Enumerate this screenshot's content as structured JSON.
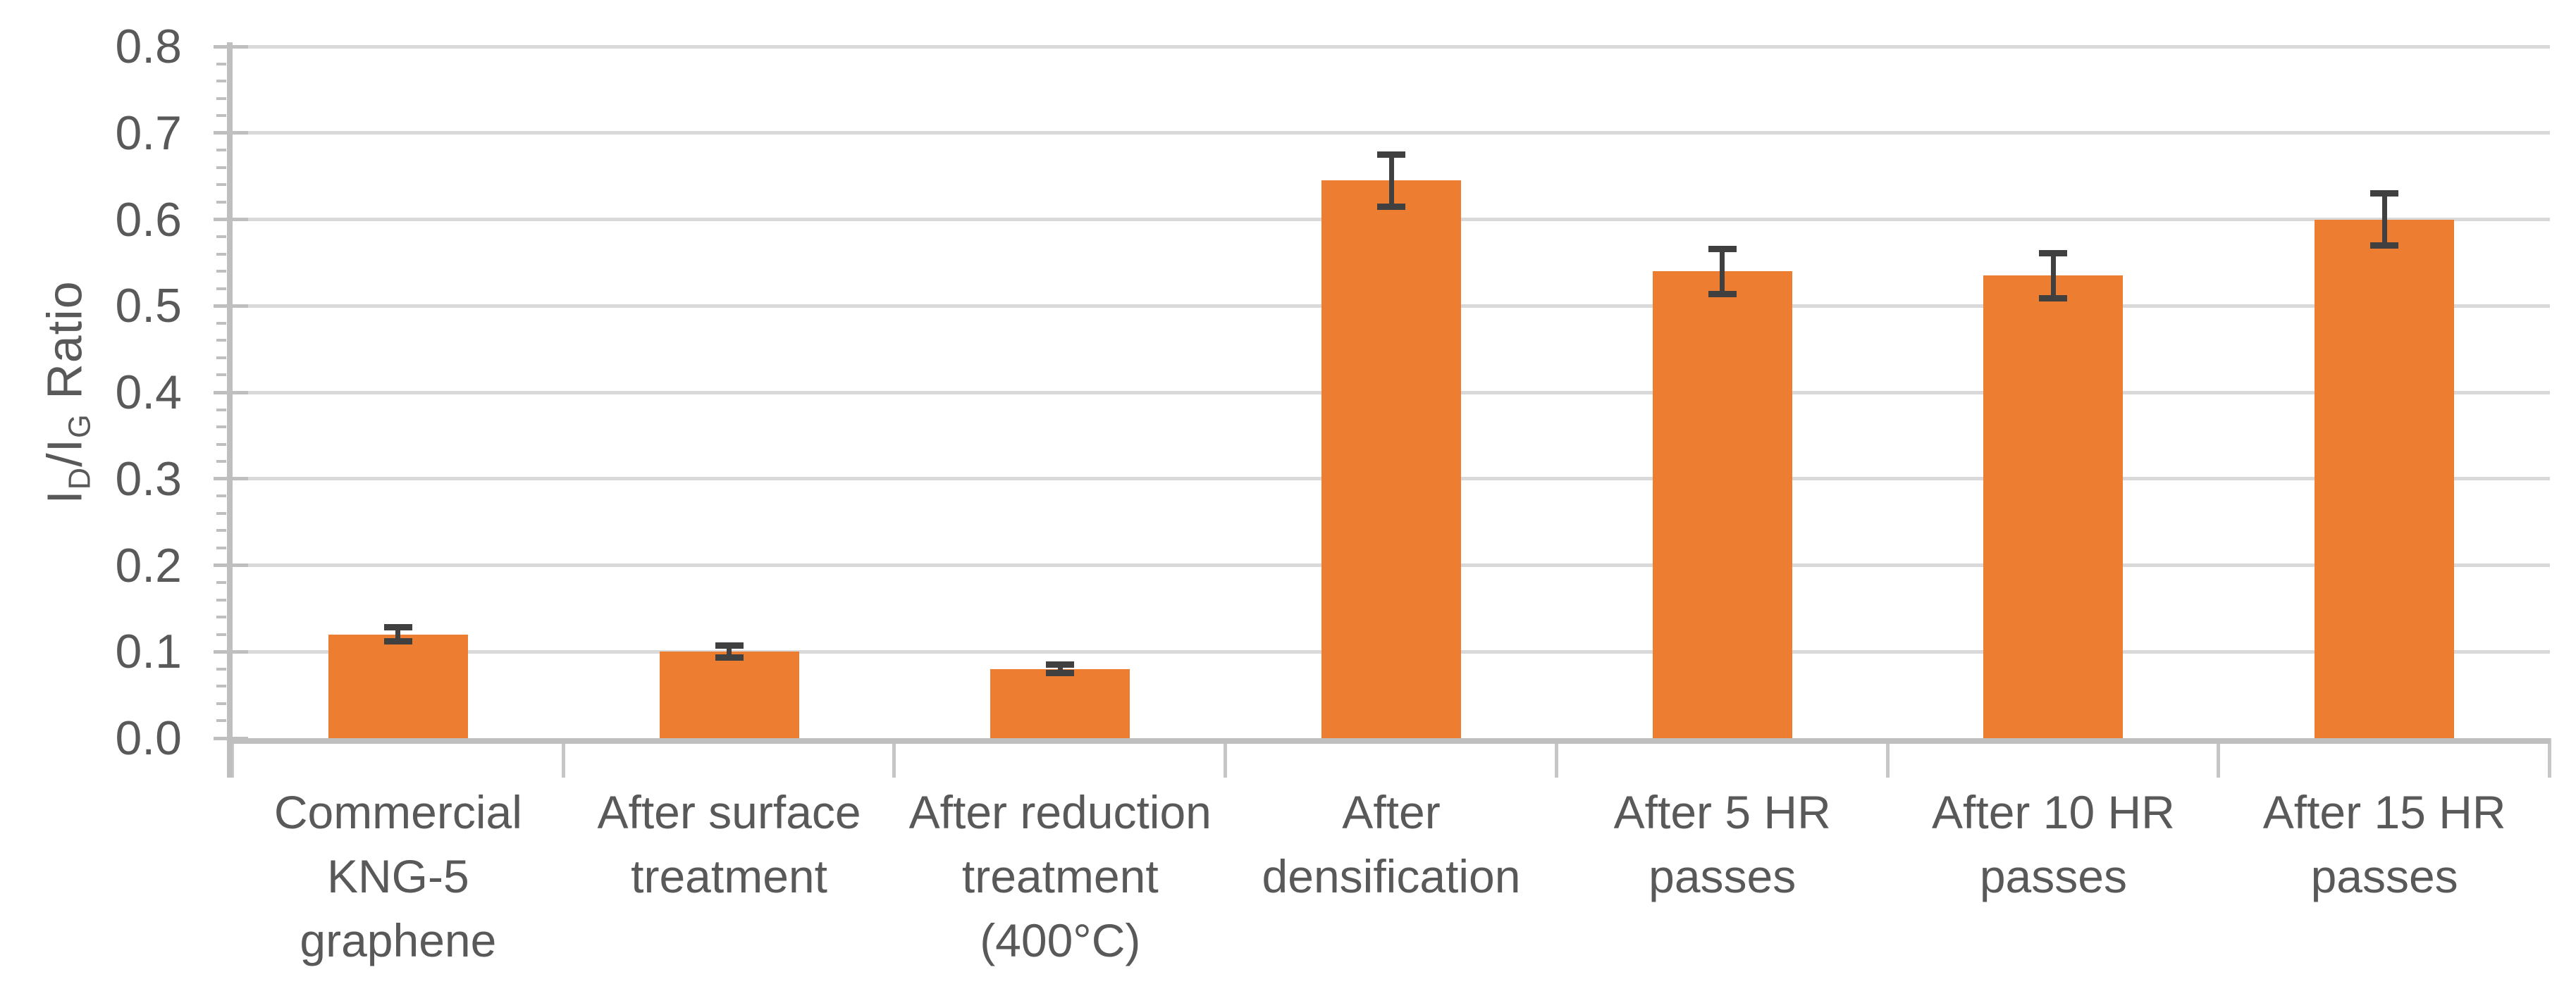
{
  "chart_data": {
    "type": "bar",
    "title": "",
    "xlabel": "",
    "ylabel": "I_D/I_G Ratio",
    "ylabel_segments": [
      {
        "text": "I",
        "sub": false
      },
      {
        "text": "D",
        "sub": true
      },
      {
        "text": "/I",
        "sub": false
      },
      {
        "text": "G",
        "sub": true
      },
      {
        "text": " Ratio",
        "sub": false
      }
    ],
    "categories": [
      "Commercial KNG-5 graphene",
      "After surface treatment",
      "After reduction treatment (400°C)",
      "After densification",
      "After 5 HR passes",
      "After 10 HR passes",
      "After 15 HR passes"
    ],
    "category_label_lines": [
      [
        "Commercial",
        "KNG-5",
        "graphene"
      ],
      [
        "After surface",
        "treatment"
      ],
      [
        "After reduction",
        "treatment",
        "(400°C)"
      ],
      [
        "After",
        "densification"
      ],
      [
        "After 5 HR",
        "passes"
      ],
      [
        "After 10 HR",
        "passes"
      ],
      [
        "After 15 HR",
        "passes"
      ]
    ],
    "values": [
      0.12,
      0.1,
      0.08,
      0.645,
      0.54,
      0.535,
      0.6
    ],
    "error_bars": [
      0.008,
      0.007,
      0.005,
      0.03,
      0.026,
      0.026,
      0.03
    ],
    "ylim": [
      0,
      0.8
    ],
    "ytick_step": 0.1,
    "yminor_tick_step": 0.02,
    "ytick_decimals": 1,
    "grid": true,
    "legend": false,
    "bar_color": "#ED7D31",
    "error_bar_color": "#404040",
    "gridline_color": "#D9D9D9",
    "axis_color": "#BFBFBF",
    "category_tick_color": "#C6C6C6",
    "text_color": "#595959"
  }
}
